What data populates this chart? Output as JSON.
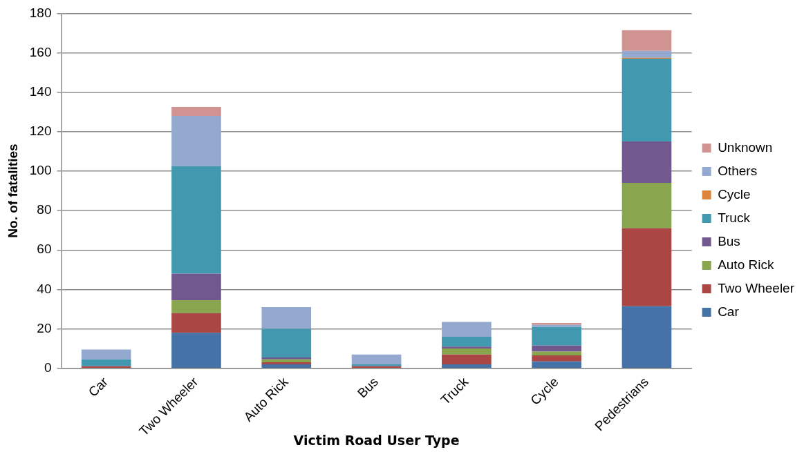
{
  "chart_data": {
    "type": "bar",
    "stacked": true,
    "xlabel": "Victim Road User Type",
    "ylabel": "No. of fatalities",
    "categories": [
      "Car",
      "Two Wheeler",
      "Auto Rick",
      "Bus",
      "Truck",
      "Cycle",
      "Pedestrians"
    ],
    "series": [
      {
        "name": "Car",
        "color": "#4572a7",
        "values": [
          0,
          18,
          2,
          0,
          2,
          3.5,
          31.5
        ]
      },
      {
        "name": "Two Wheeler",
        "color": "#aa4643",
        "values": [
          1,
          10,
          1,
          1,
          5,
          3,
          39.5
        ]
      },
      {
        "name": "Auto Rick",
        "color": "#89a54e",
        "values": [
          0,
          6.5,
          1.5,
          0,
          3,
          2,
          23
        ]
      },
      {
        "name": "Bus",
        "color": "#71588f",
        "values": [
          0,
          13.5,
          1,
          0,
          1,
          3,
          21
        ]
      },
      {
        "name": "Truck",
        "color": "#4198af",
        "values": [
          3.5,
          54.5,
          14.5,
          1,
          5,
          9.5,
          42
        ]
      },
      {
        "name": "Cycle",
        "color": "#db843d",
        "values": [
          0,
          0,
          0,
          0,
          0,
          0,
          0.5
        ]
      },
      {
        "name": "Others",
        "color": "#93a9cf",
        "values": [
          5,
          25.5,
          11,
          5,
          7.5,
          1,
          3.5
        ]
      },
      {
        "name": "Unknown",
        "color": "#d19392",
        "values": [
          0,
          4.5,
          0,
          0,
          0,
          1,
          10.5
        ]
      }
    ],
    "ylim": [
      0,
      180
    ],
    "yticks": [
      0,
      20,
      40,
      60,
      80,
      100,
      120,
      140,
      160,
      180
    ],
    "grid": "y",
    "legend": "right"
  }
}
